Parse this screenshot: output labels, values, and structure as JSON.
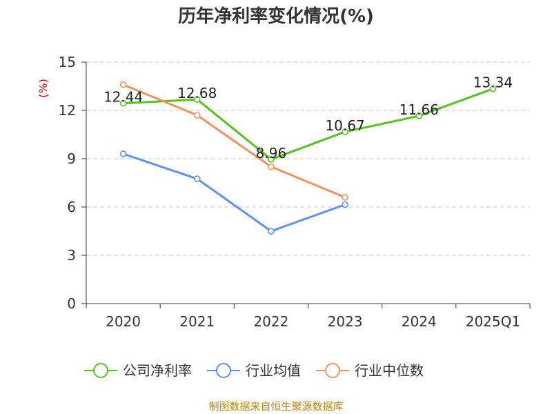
{
  "chart_data": {
    "type": "line",
    "title": "历年净利率变化情况(%)",
    "xlabel": "",
    "ylabel": "(%)",
    "categories": [
      "2020",
      "2021",
      "2022",
      "2023",
      "2024",
      "2025Q1"
    ],
    "yticks": [
      0,
      3,
      6,
      9,
      12,
      15
    ],
    "ylim": [
      0,
      15
    ],
    "grid": true,
    "legend_position": "bottom",
    "series": [
      {
        "name": "公司净利率",
        "color": "#52c41a",
        "values": [
          12.44,
          12.68,
          8.96,
          10.67,
          11.66,
          13.34
        ],
        "show_labels": true
      },
      {
        "name": "行业均值",
        "color": "#5b8ff9",
        "values": [
          9.3,
          7.75,
          4.5,
          6.15,
          null,
          null
        ],
        "show_labels": false
      },
      {
        "name": "行业中位数",
        "color": "#f5925b",
        "values": [
          13.6,
          11.7,
          8.5,
          6.6,
          null,
          null
        ],
        "show_labels": false
      }
    ]
  },
  "source_text": "制图数据来自恒生聚源数据库"
}
